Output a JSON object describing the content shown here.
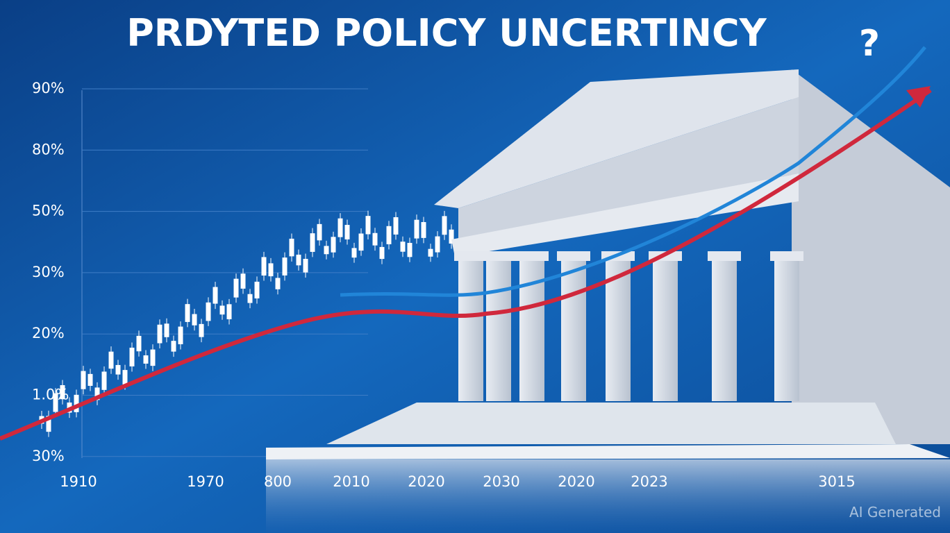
{
  "title": "PRDYTED POLICY UNCERTINCY",
  "question_mark": "?",
  "y_axis_labels": [
    "90%",
    "80%",
    "50%",
    "30%",
    "20%",
    "1.0%",
    "30%"
  ],
  "x_axis_labels": [
    "1910",
    "1970",
    "800",
    "2010",
    "2020",
    "2030",
    "2020",
    "2023",
    "3015"
  ],
  "watermark": "AI Generated"
}
